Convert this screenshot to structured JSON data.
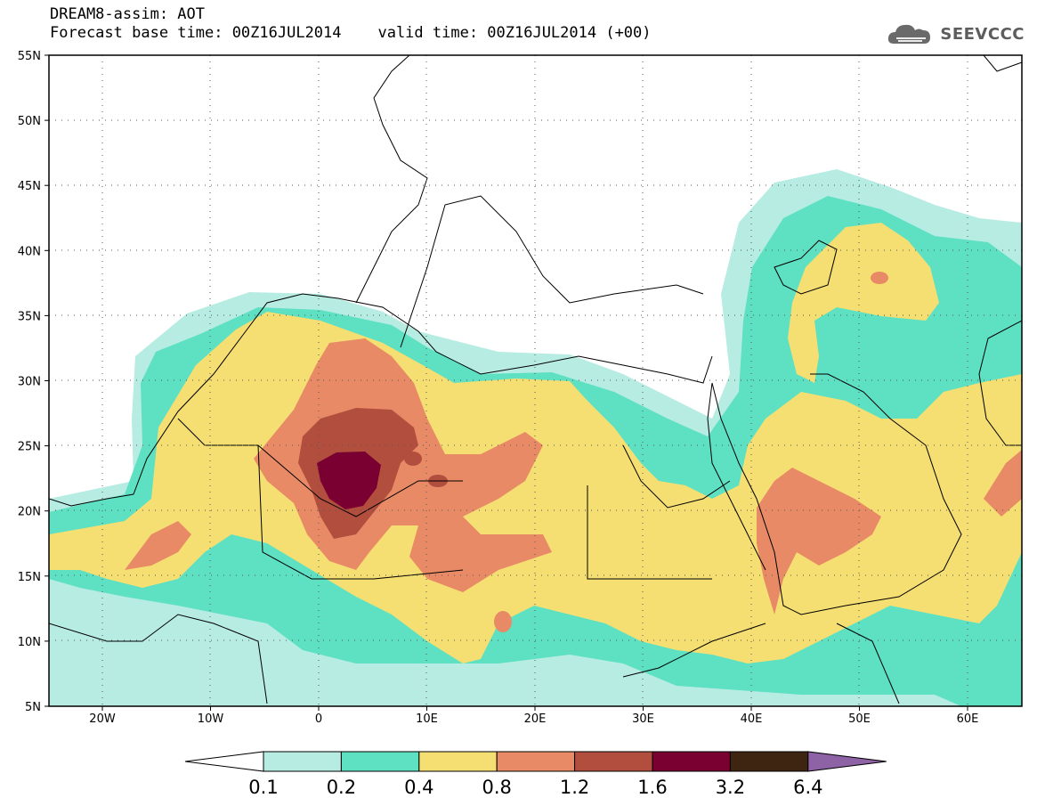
{
  "header": {
    "title": "DREAM8-assim: AOT",
    "base_time": "Forecast base time: 00Z16JUL2014",
    "valid_time": "valid time: 00Z16JUL2014 (+00)"
  },
  "brand": {
    "text": "SEEVCCC",
    "icon": "cloud-logo-icon"
  },
  "map": {
    "lat_labels": [
      "55N",
      "50N",
      "45N",
      "40N",
      "35N",
      "30N",
      "25N",
      "20N",
      "15N",
      "10N",
      "5N"
    ],
    "lon_labels": [
      "20W",
      "10W",
      "0",
      "10E",
      "20E",
      "30E",
      "40E",
      "50E",
      "60E"
    ],
    "lat_range": [
      5,
      55
    ],
    "lon_range": [
      -25,
      65
    ],
    "grid": "dotted"
  },
  "colorbar": {
    "labels": [
      "0.1",
      "0.2",
      "0.4",
      "0.8",
      "1.2",
      "1.6",
      "3.2",
      "6.4"
    ],
    "colors": [
      "#ffffff",
      "#b7ece3",
      "#5ee0c2",
      "#f5df72",
      "#e88a66",
      "#b24e3e",
      "#7a0031",
      "#3d2512",
      "#8e63a6"
    ]
  }
}
